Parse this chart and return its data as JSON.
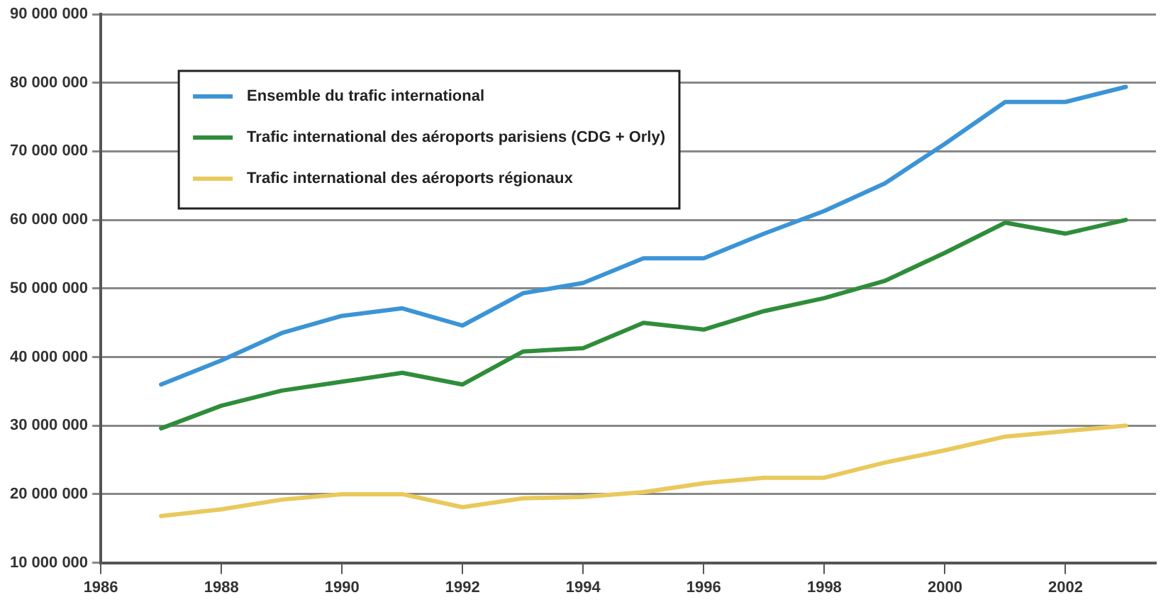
{
  "chart_data": {
    "type": "line",
    "x": [
      1987,
      1988,
      1989,
      1990,
      1991,
      1992,
      1993,
      1994,
      1995,
      1996,
      1997,
      1998,
      1999,
      2000,
      2001,
      2002,
      2003
    ],
    "series": [
      {
        "name": "Ensemble du trafic international",
        "color": "#3b94d6",
        "values": [
          36000000,
          39500000,
          43500000,
          46000000,
          47100000,
          44600000,
          49300000,
          50800000,
          54400000,
          54400000,
          58000000,
          61300000,
          65300000,
          71100000,
          77200000,
          77200000,
          79400000
        ]
      },
      {
        "name": "Trafic international des aéroports parisiens (CDG + Orly)",
        "color": "#2f8d3a",
        "values": [
          29600000,
          32900000,
          35100000,
          36400000,
          37700000,
          36000000,
          40800000,
          41300000,
          45000000,
          44000000,
          46700000,
          48600000,
          51100000,
          55200000,
          59600000,
          58000000,
          60000000
        ]
      },
      {
        "name": "Trafic international des aéroports régionaux",
        "color": "#e9c95c",
        "values": [
          16800000,
          17800000,
          19200000,
          20000000,
          20000000,
          18100000,
          19400000,
          19600000,
          20300000,
          21600000,
          22400000,
          22400000,
          24600000,
          26400000,
          28400000,
          29200000,
          30000000
        ]
      }
    ],
    "xlim": [
      1986,
      2003.5
    ],
    "xticks": [
      {
        "value": 1986,
        "label": "1986"
      },
      {
        "value": 1988,
        "label": "1988"
      },
      {
        "value": 1990,
        "label": "1990"
      },
      {
        "value": 1992,
        "label": "1992"
      },
      {
        "value": 1994,
        "label": "1994"
      },
      {
        "value": 1996,
        "label": "1996"
      },
      {
        "value": 1998,
        "label": "1998"
      },
      {
        "value": 2000,
        "label": "2000"
      },
      {
        "value": 2002,
        "label": "2002"
      }
    ],
    "ylim": [
      10000000,
      90000000
    ],
    "yticks": [
      {
        "value": 10000000,
        "label": "10 000 000"
      },
      {
        "value": 20000000,
        "label": "20 000 000"
      },
      {
        "value": 30000000,
        "label": "30 000 000"
      },
      {
        "value": 40000000,
        "label": "40 000 000"
      },
      {
        "value": 50000000,
        "label": "50 000 000"
      },
      {
        "value": 60000000,
        "label": "60 000 000"
      },
      {
        "value": 70000000,
        "label": "70 000 000"
      },
      {
        "value": 80000000,
        "label": "80 000 000"
      },
      {
        "value": 90000000,
        "label": "90 000 000"
      }
    ],
    "grid": "y",
    "legend": "top left",
    "marker": "none",
    "line_style": "solid"
  }
}
